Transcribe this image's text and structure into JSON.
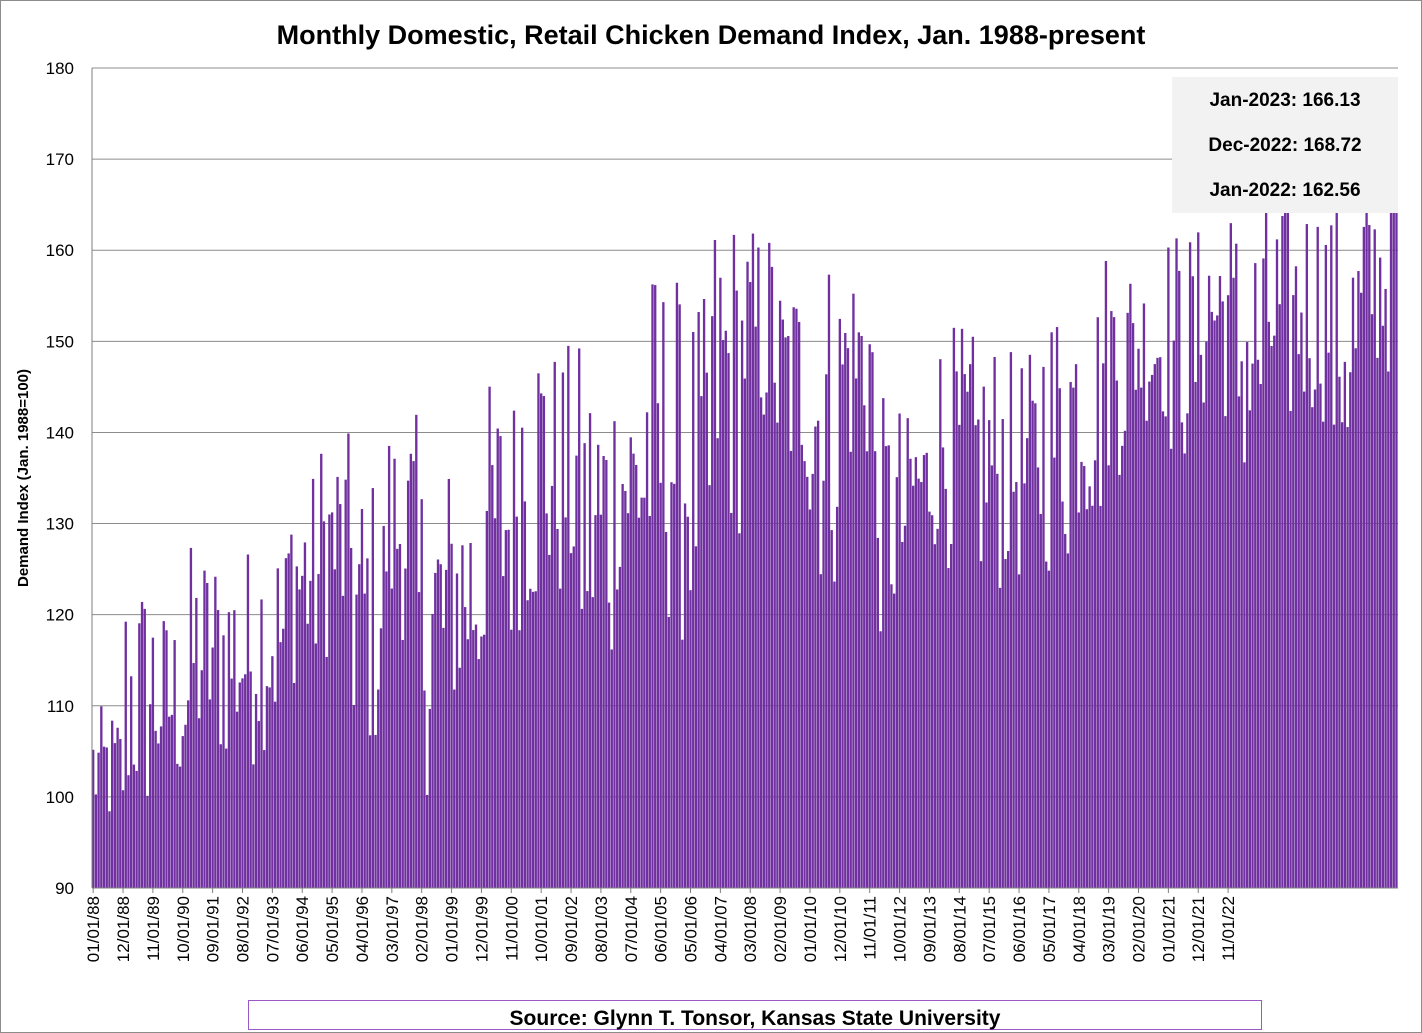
{
  "chart_data": {
    "type": "bar",
    "title": "Monthly Domestic, Retail Chicken Demand Index, Jan. 1988-present",
    "xlabel": "",
    "ylabel": "Demand Index (Jan. 1988=100)",
    "ylim": [
      90,
      180
    ],
    "yticks": [
      90,
      100,
      110,
      120,
      130,
      140,
      150,
      160,
      170,
      180
    ],
    "grid": true,
    "bar_color": "#7030a0",
    "series_start": "01/01/88",
    "series_end": "01/01/23",
    "xtick_labels": [
      "01/01/88",
      "12/01/88",
      "11/01/89",
      "10/01/90",
      "09/01/91",
      "08/01/92",
      "07/01/93",
      "06/01/94",
      "05/01/95",
      "04/01/96",
      "03/01/97",
      "02/01/98",
      "01/01/99",
      "12/01/99",
      "11/01/00",
      "10/01/01",
      "09/01/02",
      "08/01/03",
      "07/01/04",
      "06/01/05",
      "05/01/06",
      "04/01/07",
      "03/01/08",
      "02/01/09",
      "01/01/10",
      "12/01/10",
      "11/01/11",
      "10/01/12",
      "09/01/13",
      "08/01/14",
      "07/01/15",
      "06/01/16",
      "05/01/17",
      "04/01/18",
      "03/01/19",
      "02/01/20",
      "01/01/21",
      "12/01/21",
      "11/01/22"
    ],
    "yearly_ranges": [
      [
        96,
        110
      ],
      [
        97,
        125
      ],
      [
        100,
        121
      ],
      [
        103,
        128
      ],
      [
        103,
        128
      ],
      [
        105,
        130
      ],
      [
        112,
        136
      ],
      [
        115,
        140
      ],
      [
        104,
        136
      ],
      [
        117,
        142
      ],
      [
        100,
        138
      ],
      [
        108,
        137
      ],
      [
        114,
        146
      ],
      [
        118,
        155
      ],
      [
        120,
        150
      ],
      [
        111,
        149
      ],
      [
        122,
        147
      ],
      [
        118,
        159
      ],
      [
        116,
        155
      ],
      [
        128,
        165
      ],
      [
        139,
        163
      ],
      [
        133,
        158
      ],
      [
        122,
        161
      ],
      [
        135,
        160
      ],
      [
        117,
        144
      ],
      [
        127,
        142
      ],
      [
        125,
        152
      ],
      [
        122,
        151
      ],
      [
        123,
        149
      ],
      [
        124,
        156
      ],
      [
        129,
        157
      ],
      [
        135,
        161
      ],
      [
        141,
        158
      ],
      [
        136,
        163
      ],
      [
        141,
        166
      ],
      [
        132,
        165
      ],
      [
        139,
        166
      ],
      [
        141,
        167
      ],
      [
        134,
        166
      ],
      [
        146,
        168
      ],
      [
        162.56,
        168.72
      ]
    ],
    "annotations": [
      {
        "label": "Jan-2023",
        "value": 166.13,
        "text": "Jan-2023: 166.13"
      },
      {
        "label": "Dec-2022",
        "value": 168.72,
        "text": "Dec-2022: 168.72"
      },
      {
        "label": "Jan-2022",
        "value": 162.56,
        "text": "Jan-2022: 162.56"
      }
    ]
  },
  "source": "Source: Glynn T. Tonsor, Kansas State University"
}
